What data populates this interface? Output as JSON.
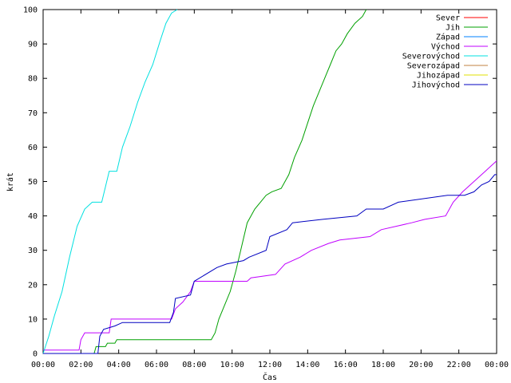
{
  "chart_data": {
    "type": "line",
    "xlabel": "Čas",
    "ylabel": "krát",
    "xlim": [
      0,
      24
    ],
    "ylim": [
      0,
      100
    ],
    "x_ticks": [
      {
        "value": 0,
        "label": "00:00"
      },
      {
        "value": 2,
        "label": "02:00"
      },
      {
        "value": 4,
        "label": "04:00"
      },
      {
        "value": 6,
        "label": "06:00"
      },
      {
        "value": 8,
        "label": "08:00"
      },
      {
        "value": 10,
        "label": "10:00"
      },
      {
        "value": 12,
        "label": "12:00"
      },
      {
        "value": 14,
        "label": "14:00"
      },
      {
        "value": 16,
        "label": "16:00"
      },
      {
        "value": 18,
        "label": "18:00"
      },
      {
        "value": 20,
        "label": "20:00"
      },
      {
        "value": 22,
        "label": "22:00"
      },
      {
        "value": 24,
        "label": "00:00"
      }
    ],
    "y_ticks": [
      0,
      10,
      20,
      30,
      40,
      50,
      60,
      70,
      80,
      90,
      100
    ],
    "grid": false,
    "legend_position": "top-right",
    "series": [
      {
        "name": "Sever",
        "color": "#ff0000",
        "points": []
      },
      {
        "name": "Jih",
        "color": "#00a000",
        "points": [
          [
            0,
            0
          ],
          [
            2.7,
            0
          ],
          [
            2.8,
            2
          ],
          [
            3.3,
            2
          ],
          [
            3.4,
            3
          ],
          [
            3.8,
            3
          ],
          [
            3.9,
            4
          ],
          [
            8.9,
            4
          ],
          [
            9.1,
            6
          ],
          [
            9.3,
            10
          ],
          [
            9.6,
            14
          ],
          [
            9.9,
            18
          ],
          [
            10.2,
            24
          ],
          [
            10.5,
            31
          ],
          [
            10.8,
            38
          ],
          [
            11.2,
            42
          ],
          [
            11.5,
            44
          ],
          [
            11.8,
            46
          ],
          [
            12.1,
            47
          ],
          [
            12.6,
            48
          ],
          [
            13.0,
            52
          ],
          [
            13.3,
            57
          ],
          [
            13.7,
            62
          ],
          [
            14.0,
            67
          ],
          [
            14.3,
            72
          ],
          [
            14.6,
            76
          ],
          [
            14.9,
            80
          ],
          [
            15.2,
            84
          ],
          [
            15.5,
            88
          ],
          [
            15.8,
            90
          ],
          [
            16.1,
            93
          ],
          [
            16.5,
            96
          ],
          [
            16.9,
            98
          ],
          [
            17.1,
            100
          ]
        ]
      },
      {
        "name": "Západ",
        "color": "#0080ff",
        "points": []
      },
      {
        "name": "Východ",
        "color": "#c000ff",
        "points": [
          [
            0,
            1
          ],
          [
            1.9,
            1
          ],
          [
            2.0,
            4
          ],
          [
            2.2,
            6
          ],
          [
            3.5,
            6
          ],
          [
            3.6,
            10
          ],
          [
            6.8,
            10
          ],
          [
            7.0,
            13
          ],
          [
            7.4,
            15
          ],
          [
            7.8,
            18
          ],
          [
            8.0,
            21
          ],
          [
            10.8,
            21
          ],
          [
            11.0,
            22
          ],
          [
            12.3,
            23
          ],
          [
            12.8,
            26
          ],
          [
            13.6,
            28
          ],
          [
            14.2,
            30
          ],
          [
            15.1,
            32
          ],
          [
            15.7,
            33
          ],
          [
            17.3,
            34
          ],
          [
            17.9,
            36
          ],
          [
            18.7,
            37
          ],
          [
            19.5,
            38
          ],
          [
            20.2,
            39
          ],
          [
            21.3,
            40
          ],
          [
            21.7,
            44
          ],
          [
            22.2,
            47
          ],
          [
            22.8,
            50
          ],
          [
            23.4,
            53
          ],
          [
            23.8,
            55
          ],
          [
            24.0,
            56
          ]
        ]
      },
      {
        "name": "Severovýchod",
        "color": "#00e0e0",
        "points": [
          [
            0,
            0
          ],
          [
            0.3,
            5
          ],
          [
            0.6,
            11
          ],
          [
            1.0,
            18
          ],
          [
            1.4,
            28
          ],
          [
            1.8,
            37
          ],
          [
            2.2,
            42
          ],
          [
            2.6,
            44
          ],
          [
            3.1,
            44
          ],
          [
            3.5,
            53
          ],
          [
            3.9,
            53
          ],
          [
            4.2,
            60
          ],
          [
            4.6,
            66
          ],
          [
            5.0,
            73
          ],
          [
            5.4,
            79
          ],
          [
            5.8,
            84
          ],
          [
            6.2,
            91
          ],
          [
            6.5,
            96
          ],
          [
            6.8,
            99
          ],
          [
            7.1,
            100
          ]
        ]
      },
      {
        "name": "Severozápad",
        "color": "#c08040",
        "points": []
      },
      {
        "name": "Jihozápad",
        "color": "#e0e000",
        "points": []
      },
      {
        "name": "Jihovýchod",
        "color": "#0000c0",
        "points": [
          [
            0,
            0
          ],
          [
            2.9,
            0
          ],
          [
            3.0,
            5
          ],
          [
            3.2,
            7
          ],
          [
            3.8,
            8
          ],
          [
            4.2,
            9
          ],
          [
            6.7,
            9
          ],
          [
            6.9,
            12
          ],
          [
            7.0,
            16
          ],
          [
            7.8,
            17
          ],
          [
            8.0,
            21
          ],
          [
            8.3,
            22
          ],
          [
            9.2,
            25
          ],
          [
            9.7,
            26
          ],
          [
            10.6,
            27
          ],
          [
            10.9,
            28
          ],
          [
            11.8,
            30
          ],
          [
            12.0,
            34
          ],
          [
            12.9,
            36
          ],
          [
            13.2,
            38
          ],
          [
            14.8,
            39
          ],
          [
            16.6,
            40
          ],
          [
            17.1,
            42
          ],
          [
            18.0,
            42
          ],
          [
            18.8,
            44
          ],
          [
            21.4,
            46
          ],
          [
            22.3,
            46
          ],
          [
            22.8,
            47
          ],
          [
            23.2,
            49
          ],
          [
            23.6,
            50
          ],
          [
            23.9,
            52
          ],
          [
            24.0,
            52
          ]
        ]
      }
    ]
  }
}
